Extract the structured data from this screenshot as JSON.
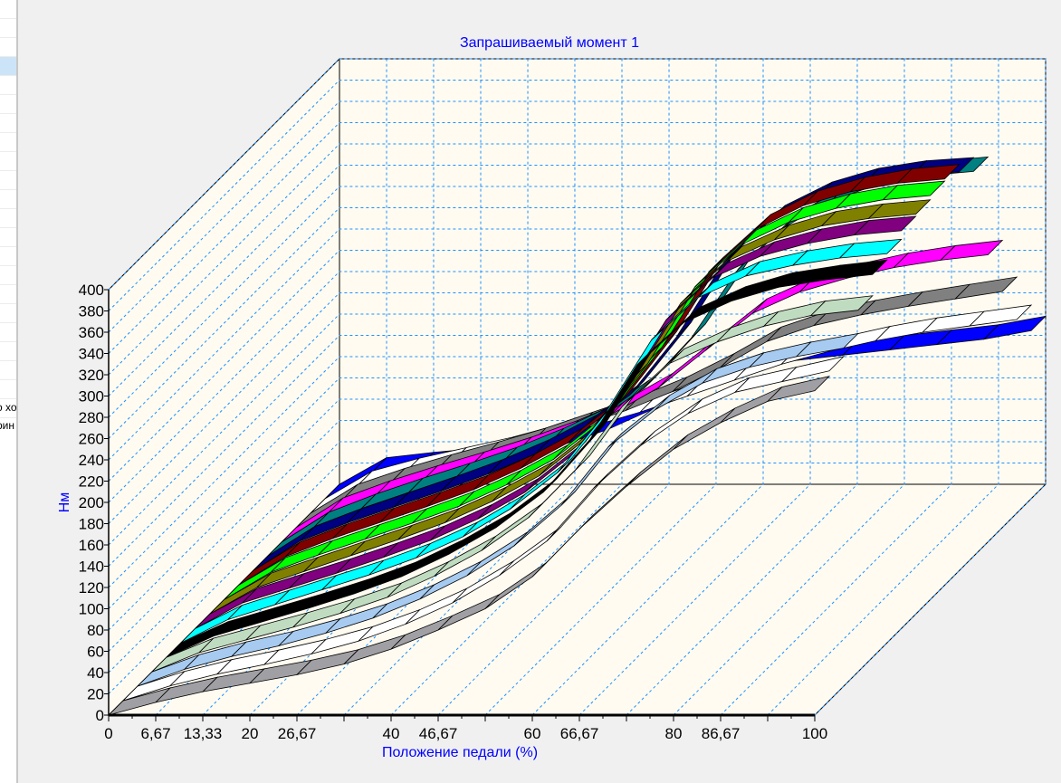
{
  "left_panel": {
    "fragments": [
      "о хо",
      "рин"
    ]
  },
  "chart_data": {
    "type": "3d-ribbon",
    "title": "Запрашиваемый момент 1",
    "xlabel": "Положение педали (%)",
    "ylabel": "Нм",
    "ylim": [
      0,
      400
    ],
    "xlim": [
      0,
      100
    ],
    "yticks": [
      0,
      20,
      40,
      60,
      80,
      100,
      120,
      140,
      160,
      180,
      200,
      220,
      240,
      260,
      280,
      300,
      320,
      340,
      360,
      380,
      400
    ],
    "xtick_labels": [
      {
        "value": 0,
        "label": "0"
      },
      {
        "value": 6.67,
        "label": "6,67"
      },
      {
        "value": 13.33,
        "label": "13,33"
      },
      {
        "value": 20,
        "label": "20"
      },
      {
        "value": 26.67,
        "label": "26,67"
      },
      {
        "value": 40,
        "label": "40"
      },
      {
        "value": 46.67,
        "label": "46,67"
      },
      {
        "value": 60,
        "label": "60"
      },
      {
        "value": 66.67,
        "label": "66,67"
      },
      {
        "value": 80,
        "label": "80"
      },
      {
        "value": 86.67,
        "label": "86,67"
      },
      {
        "value": 100,
        "label": "100"
      }
    ],
    "x": [
      0,
      6.67,
      13.33,
      20,
      26.67,
      33.33,
      40,
      46.67,
      53.33,
      60,
      66.67,
      73.33,
      80,
      86.67,
      93.33,
      100
    ],
    "grid": true,
    "series": [
      {
        "color": "#a0a0a4",
        "values": [
          0,
          12,
          22,
          30,
          38,
          48,
          62,
          80,
          100,
          130,
          175,
          215,
          250,
          275,
          295,
          305
        ]
      },
      {
        "color": "#ffffff",
        "values": [
          0,
          14,
          25,
          34,
          44,
          56,
          72,
          92,
          118,
          150,
          200,
          240,
          270,
          290,
          300,
          310
        ]
      },
      {
        "color": "#a6caf0",
        "values": [
          0,
          16,
          28,
          38,
          50,
          64,
          82,
          104,
          132,
          170,
          225,
          260,
          285,
          300,
          310,
          318
        ]
      },
      {
        "color": "#c0dcc0",
        "values": [
          0,
          18,
          30,
          42,
          55,
          70,
          90,
          114,
          145,
          190,
          250,
          290,
          310,
          325,
          335,
          340
        ]
      },
      {
        "color": "#000000",
        "values": [
          0,
          20,
          33,
          46,
          60,
          76,
          97,
          122,
          155,
          205,
          275,
          315,
          335,
          348,
          355,
          360
        ]
      },
      {
        "color": "#00ffff",
        "values": [
          0,
          22,
          36,
          50,
          64,
          80,
          100,
          126,
          160,
          215,
          285,
          325,
          345,
          355,
          362,
          366
        ]
      },
      {
        "color": "#800080",
        "values": [
          0,
          24,
          38,
          52,
          67,
          83,
          103,
          128,
          163,
          220,
          290,
          330,
          350,
          362,
          370,
          374
        ]
      },
      {
        "color": "#808000",
        "values": [
          0,
          25,
          40,
          55,
          70,
          86,
          106,
          130,
          165,
          222,
          292,
          332,
          352,
          365,
          372,
          376
        ]
      },
      {
        "color": "#00ff00",
        "values": [
          0,
          26,
          42,
          57,
          72,
          88,
          108,
          132,
          167,
          224,
          294,
          334,
          355,
          368,
          376,
          380
        ]
      },
      {
        "color": "#800000",
        "values": [
          0,
          27,
          44,
          59,
          74,
          90,
          110,
          134,
          168,
          225,
          295,
          335,
          357,
          370,
          378,
          382
        ]
      },
      {
        "color": "#000080",
        "values": [
          0,
          28,
          45,
          60,
          75,
          91,
          110,
          133,
          165,
          220,
          290,
          330,
          352,
          365,
          372,
          375
        ]
      },
      {
        "color": "#008080",
        "values": [
          0,
          28,
          45,
          60,
          74,
          89,
          107,
          128,
          158,
          205,
          270,
          310,
          335,
          350,
          358,
          362
        ]
      },
      {
        "color": "#ff00ff",
        "values": [
          0,
          28,
          44,
          58,
          71,
          85,
          101,
          120,
          145,
          180,
          215,
          235,
          248,
          258,
          265,
          270
        ]
      },
      {
        "color": "#808080",
        "values": [
          0,
          27,
          42,
          55,
          67,
          80,
          95,
          110,
          128,
          150,
          175,
          190,
          200,
          208,
          215,
          222
        ]
      },
      {
        "color": "#ffffff",
        "values": [
          0,
          26,
          38,
          48,
          58,
          70,
          82,
          95,
          110,
          125,
          140,
          152,
          162,
          170,
          176,
          182
        ]
      },
      {
        "color": "#0000ff",
        "values": [
          0,
          25,
          30,
          34,
          40,
          50,
          65,
          85,
          105,
          120,
          130,
          135,
          140,
          145,
          150,
          158
        ]
      }
    ]
  }
}
